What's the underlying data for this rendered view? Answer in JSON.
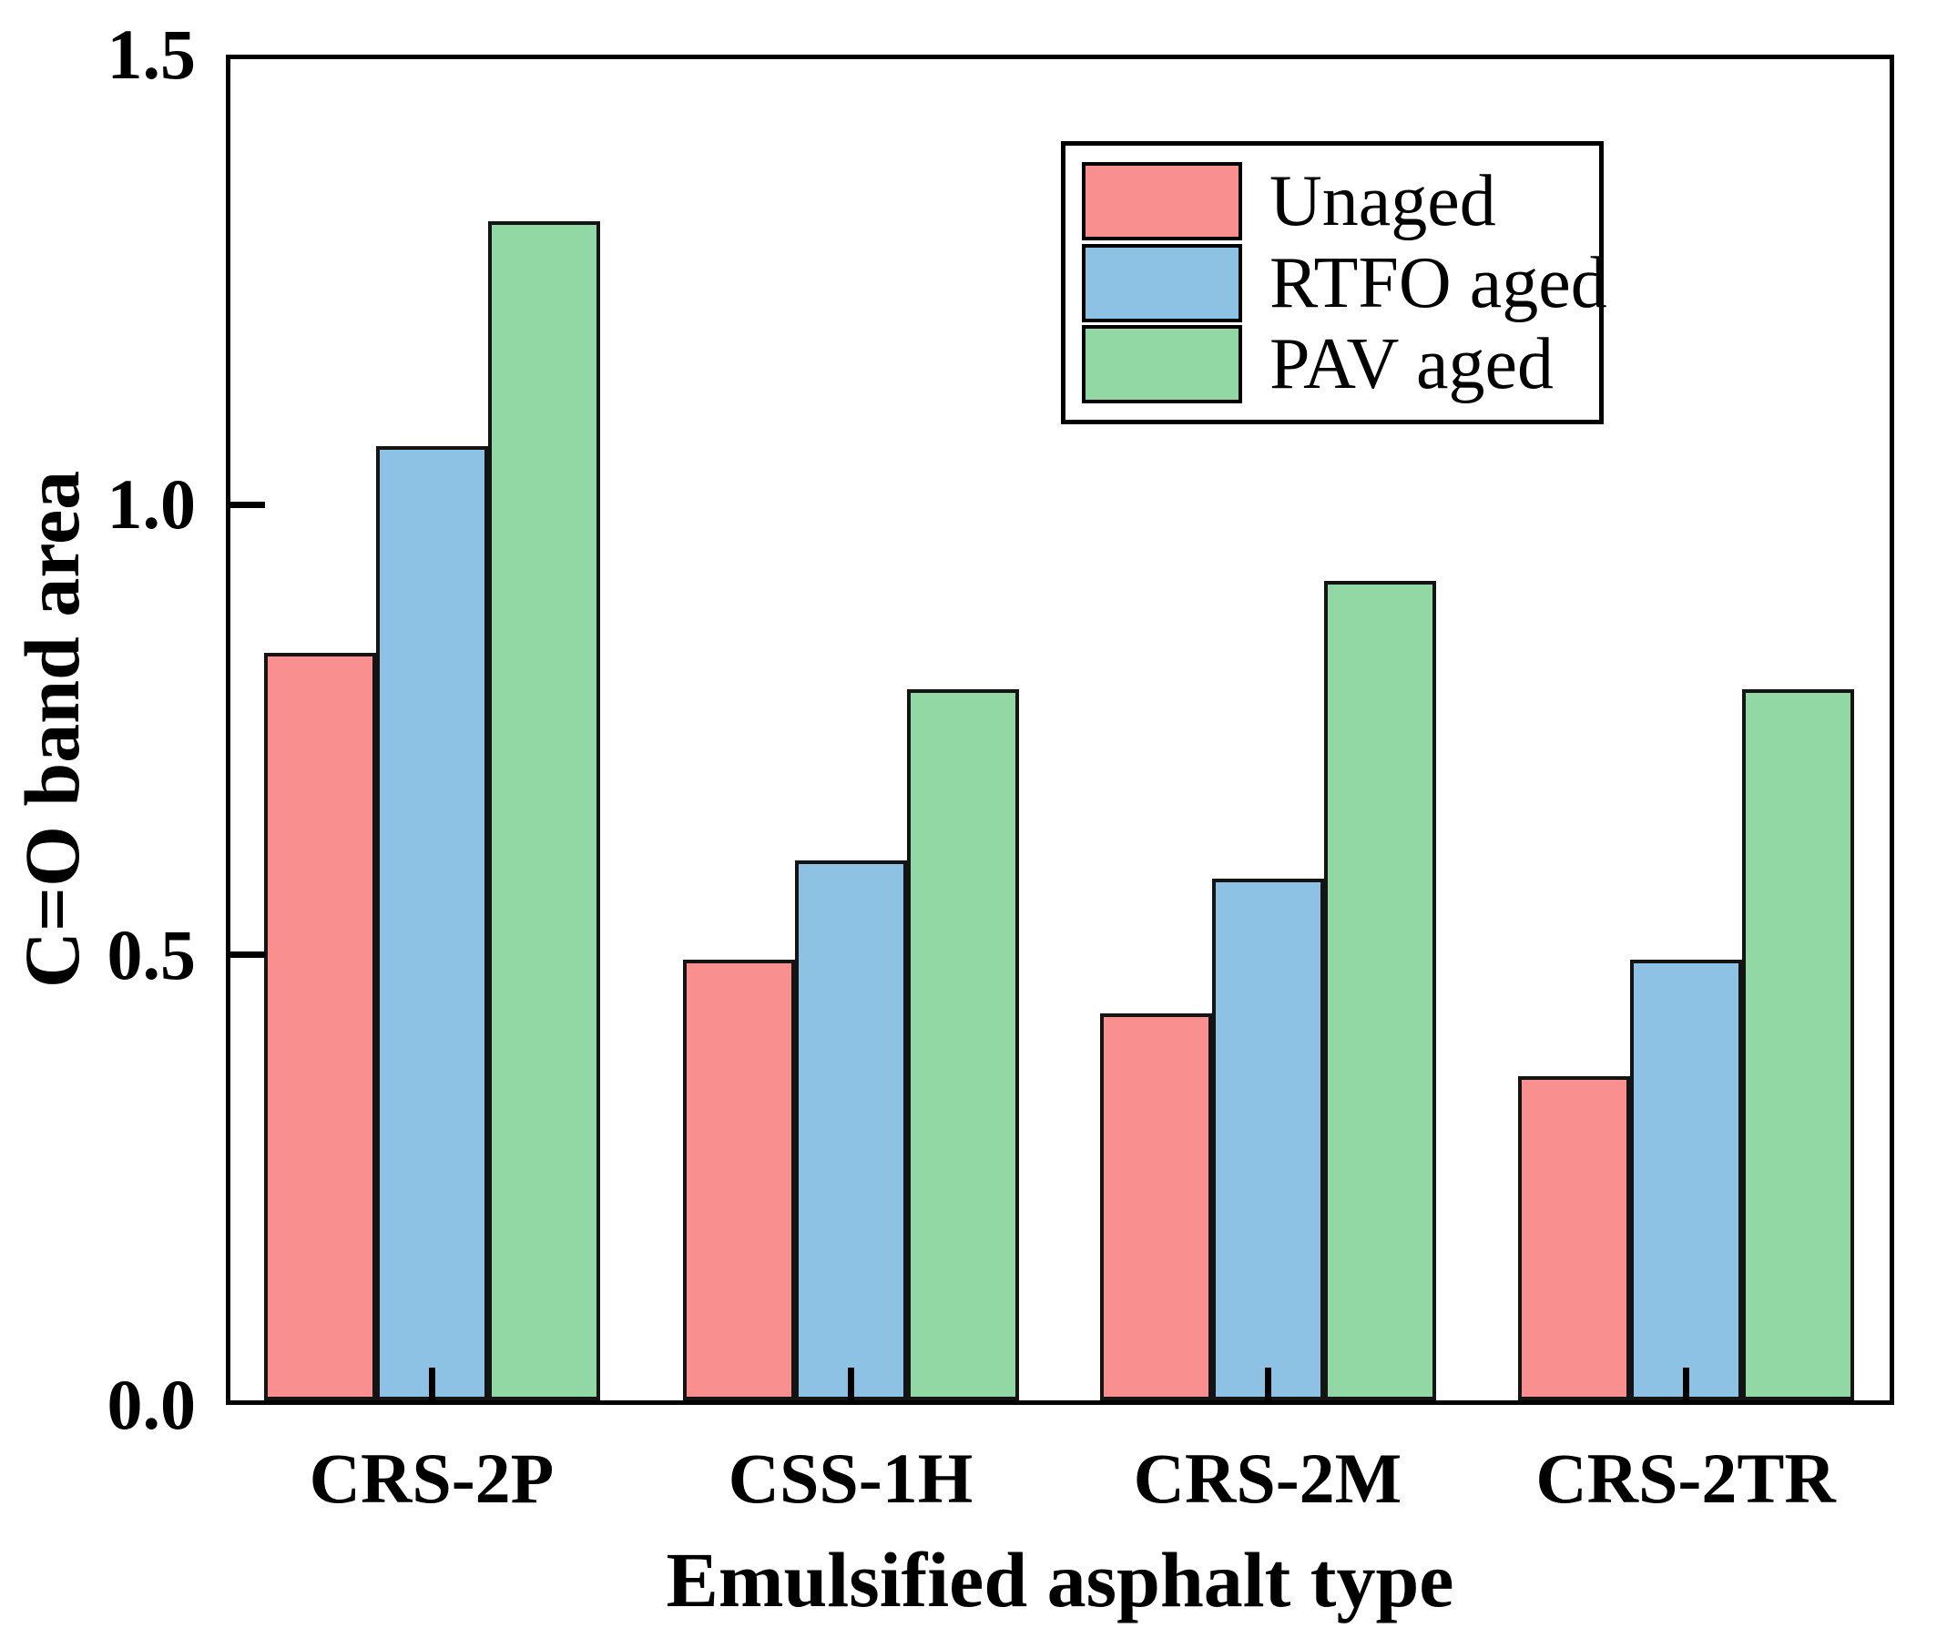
{
  "chart_data": {
    "type": "bar",
    "title": "",
    "xlabel": "Emulsified asphalt type",
    "ylabel": "C=O band area",
    "categories": [
      "CRS-2P",
      "CSS-1H",
      "CRS-2M",
      "CRS-2TR"
    ],
    "series": [
      {
        "name": "Unaged",
        "color": "#F98F8F",
        "values": [
          0.83,
          0.49,
          0.43,
          0.36
        ]
      },
      {
        "name": "RTFO aged",
        "color": "#8DC2E5",
        "values": [
          1.06,
          0.6,
          0.58,
          0.49
        ]
      },
      {
        "name": "PAV aged",
        "color": "#92D8A5",
        "values": [
          1.31,
          0.79,
          0.91,
          0.79
        ]
      }
    ],
    "ylim": [
      0.0,
      1.5
    ],
    "yticks": [
      "0.0",
      "0.5",
      "1.0",
      "1.5"
    ],
    "grid": false,
    "legend_position": "top-right",
    "bar_outline_color": "#141414",
    "axis_color": "#000000"
  }
}
